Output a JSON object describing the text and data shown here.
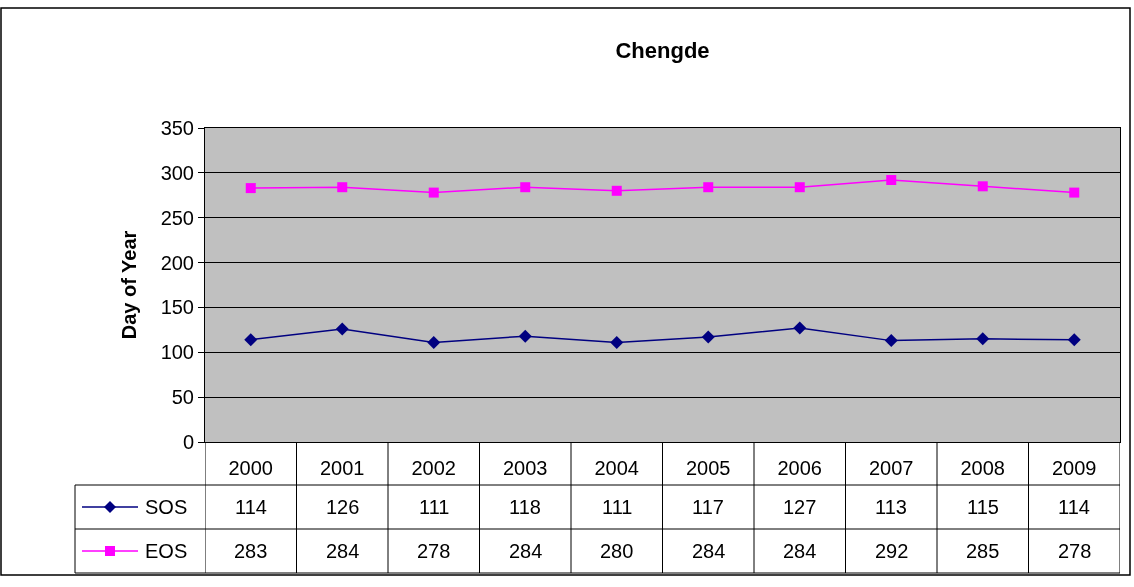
{
  "chart_data": {
    "type": "line",
    "title": "Chengde",
    "ylabel": "Day of Year",
    "categories": [
      "2000",
      "2001",
      "2002",
      "2003",
      "2004",
      "2005",
      "2006",
      "2007",
      "2008",
      "2009"
    ],
    "series": [
      {
        "name": "SOS",
        "color": "#000080",
        "marker": "diamond",
        "values": [
          114,
          126,
          111,
          118,
          111,
          117,
          127,
          113,
          115,
          114
        ]
      },
      {
        "name": "EOS",
        "color": "#ff00ff",
        "marker": "square",
        "values": [
          283,
          284,
          278,
          284,
          280,
          284,
          284,
          292,
          285,
          278
        ]
      }
    ],
    "ylim": [
      0,
      350
    ],
    "yticks": [
      0,
      50,
      100,
      150,
      200,
      250,
      300,
      350
    ],
    "grid": "y",
    "legend": "bottom left",
    "data_labels": true
  }
}
